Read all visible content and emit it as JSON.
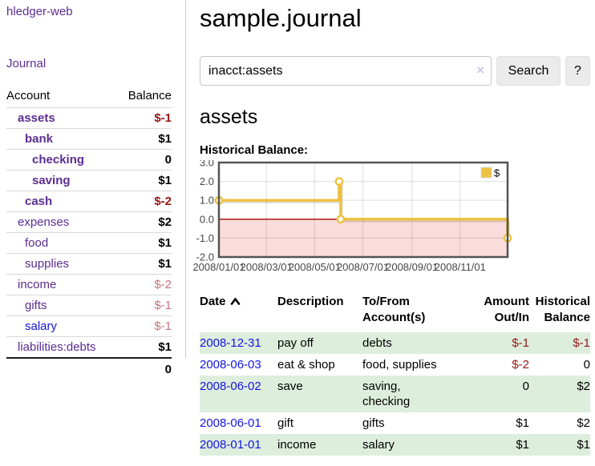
{
  "sidebar": {
    "brand": "hledger-web",
    "nav_journal": "Journal",
    "accounts_header": {
      "account": "Account",
      "balance": "Balance"
    },
    "accounts": [
      {
        "name": "assets",
        "indent": 0,
        "bold": true,
        "balance": "$-1",
        "neg": "strong"
      },
      {
        "name": "bank",
        "indent": 1,
        "bold": true,
        "balance": "$1",
        "neg": null
      },
      {
        "name": "checking",
        "indent": 2,
        "bold": true,
        "balance": "0",
        "neg": null
      },
      {
        "name": "saving",
        "indent": 2,
        "bold": true,
        "balance": "$1",
        "neg": null
      },
      {
        "name": "cash",
        "indent": 1,
        "bold": true,
        "balance": "$-2",
        "neg": "strong"
      },
      {
        "name": "expenses",
        "indent": 0,
        "bold": false,
        "balance": "$2",
        "neg": null
      },
      {
        "name": "food",
        "indent": 1,
        "bold": false,
        "balance": "$1",
        "neg": null
      },
      {
        "name": "supplies",
        "indent": 1,
        "bold": false,
        "balance": "$1",
        "neg": null
      },
      {
        "name": "income",
        "indent": 0,
        "bold": false,
        "balance": "$-2",
        "neg": "soft"
      },
      {
        "name": "gifts",
        "indent": 1,
        "bold": false,
        "balance": "$-1",
        "neg": "soft"
      },
      {
        "name": "salary",
        "indent": 1,
        "bold": false,
        "balance": "$-1",
        "neg": "soft",
        "link_variant": "blue"
      },
      {
        "name": "liabilities:debts",
        "indent": 0,
        "bold": false,
        "balance": "$1",
        "neg": null
      }
    ],
    "total": "0"
  },
  "header": {
    "title": "sample.journal"
  },
  "search": {
    "value": "inacct:assets",
    "clear_icon": "×",
    "button_label": "Search",
    "help_label": "?"
  },
  "account_page": {
    "heading": "assets",
    "chart_title": "Historical Balance:"
  },
  "chart_data": {
    "type": "line",
    "step": true,
    "title": "Historical Balance",
    "series": [
      {
        "name": "$",
        "color": "#edc240",
        "points": [
          [
            "2008-01-01",
            1
          ],
          [
            "2008-06-01",
            2
          ],
          [
            "2008-06-03",
            0
          ],
          [
            "2008-12-31",
            -1
          ]
        ]
      }
    ],
    "x_domain": [
      "2008-01-01",
      "2008-12-31"
    ],
    "x_tick_labels": [
      "2008/01/01",
      "2008/03/01",
      "2008/05/01",
      "2008/07/01",
      "2008/09/01",
      "2008/11/01"
    ],
    "y_ticks": [
      3.0,
      2.0,
      1.0,
      0.0,
      -1.0,
      -2.0
    ],
    "ylim": [
      -2,
      3
    ],
    "grid": true,
    "legend_position": "top-right",
    "legend_label": "$",
    "negative_region_fill": "#fbdcdc",
    "zero_line_color": "#a40000"
  },
  "register": {
    "columns": [
      "Date",
      "Description",
      "To/From Account(s)",
      "Amount Out/In",
      "Historical Balance"
    ],
    "sort_column": "Date",
    "sort_direction": "ascending",
    "rows": [
      {
        "date": "2008-12-31",
        "description": "pay off",
        "accounts": "debts",
        "amount": "$-1",
        "amount_negative": true,
        "balance": "$-1",
        "balance_negative": true
      },
      {
        "date": "2008-06-03",
        "description": "eat & shop",
        "accounts": "food, supplies",
        "amount": "$-2",
        "amount_negative": true,
        "balance": "0",
        "balance_negative": false
      },
      {
        "date": "2008-06-02",
        "description": "save",
        "accounts": "saving,\nchecking",
        "amount": "0",
        "amount_negative": false,
        "balance": "$2",
        "balance_negative": false
      },
      {
        "date": "2008-06-01",
        "description": "gift",
        "accounts": "gifts",
        "amount": "$1",
        "amount_negative": false,
        "balance": "$2",
        "balance_negative": false
      },
      {
        "date": "2008-01-01",
        "description": "income",
        "accounts": "salary",
        "amount": "$1",
        "amount_negative": false,
        "balance": "$1",
        "balance_negative": false
      }
    ]
  }
}
